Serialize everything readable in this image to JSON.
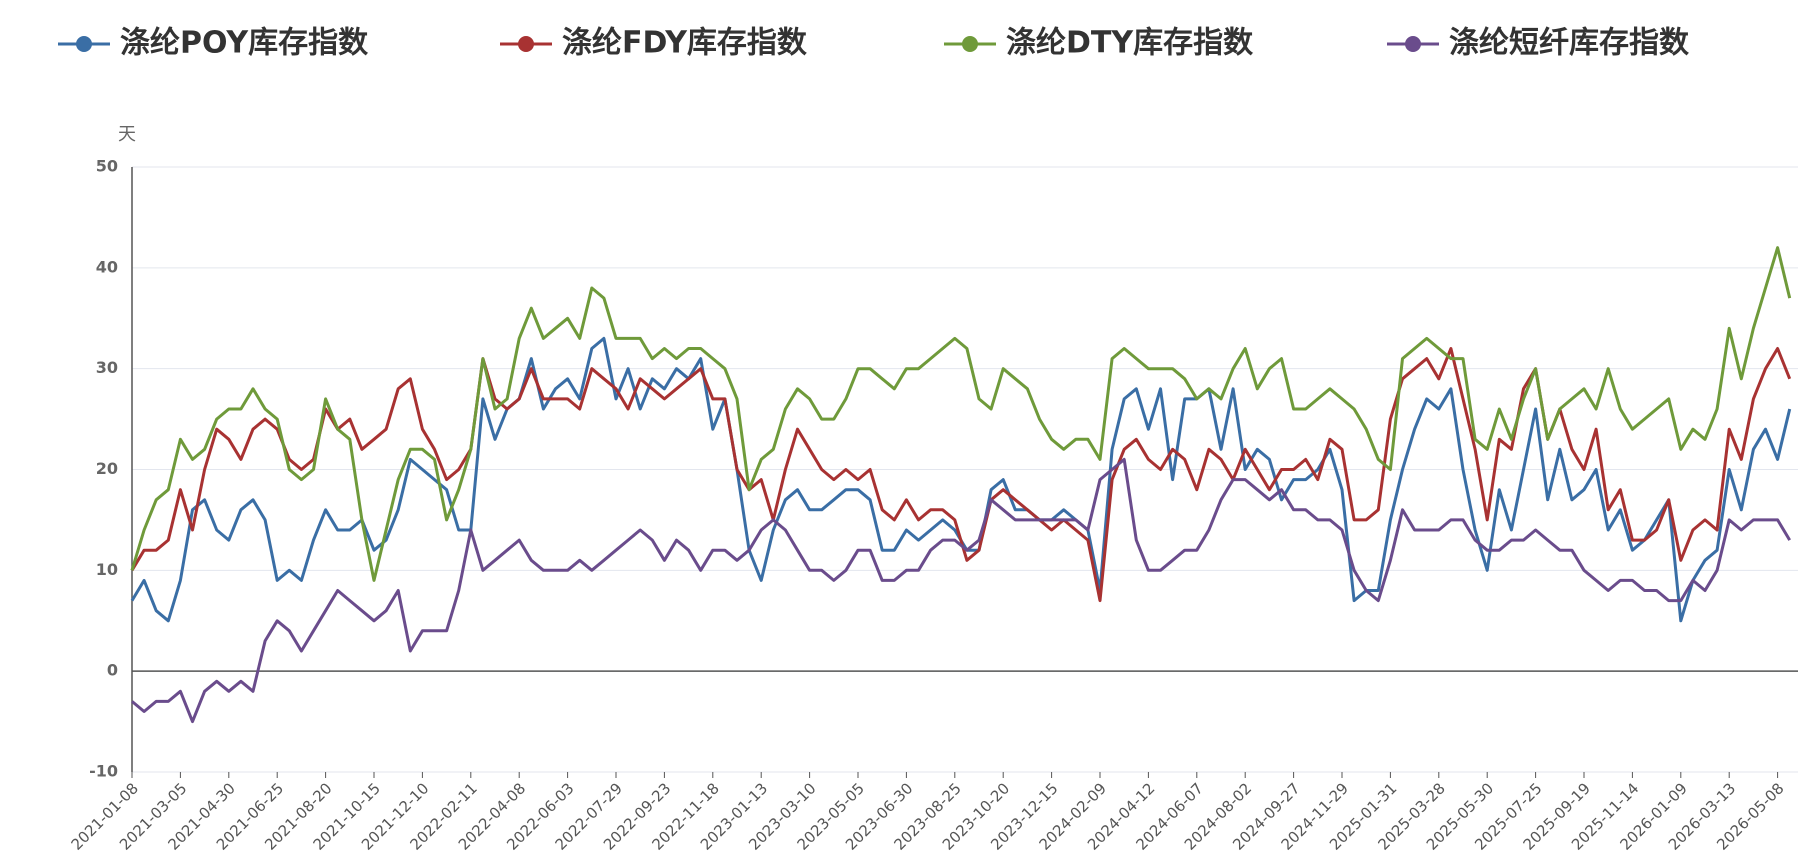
{
  "chart_data": {
    "type": "line",
    "y_axis_label": "天",
    "categories": [
      "2021-01-08",
      null,
      null,
      null,
      "2021-03-05",
      null,
      null,
      null,
      "2021-04-30",
      null,
      null,
      null,
      "2021-06-25",
      null,
      null,
      null,
      "2021-08-20",
      null,
      null,
      null,
      "2021-10-15",
      null,
      null,
      null,
      "2021-12-10",
      null,
      null,
      null,
      "2022-02-11",
      null,
      null,
      null,
      "2022-04-08",
      null,
      null,
      null,
      "2022-06-03",
      null,
      null,
      null,
      "2022-07-29",
      null,
      null,
      null,
      "2022-09-23",
      null,
      null,
      null,
      "2022-11-18",
      null,
      null,
      null,
      "2023-01-13",
      null,
      null,
      null,
      "2023-03-10",
      null,
      null,
      null,
      "2023-05-05",
      null,
      null,
      null,
      "2023-06-30",
      null,
      null,
      null,
      "2023-08-25",
      null,
      null,
      null,
      "2023-10-20",
      null,
      null,
      null,
      "2023-12-15",
      null,
      null,
      null,
      "2024-02-09",
      null,
      null,
      null,
      "2024-04-12",
      null,
      null,
      null,
      "2024-06-07",
      null,
      null,
      null,
      "2024-08-02",
      null,
      null,
      null,
      "2024-09-27",
      null,
      null,
      null,
      "2024-11-29",
      null,
      null,
      null,
      "2025-01-31",
      null,
      null,
      null,
      "2025-03-28",
      null,
      null,
      null,
      "2025-05-30",
      null,
      null,
      null,
      "2025-07-25",
      null,
      null,
      null,
      "2025-09-19",
      null,
      null,
      null,
      "2025-11-14",
      null,
      null,
      null,
      "2026-01-09",
      null,
      null,
      null,
      "2026-03-13",
      null,
      null,
      null,
      "2026-05-08",
      null
    ],
    "series": [
      {
        "name": "涤纶POY库存指数",
        "color": "#3a6ea5",
        "values": [
          7,
          9,
          6,
          5,
          9,
          16,
          17,
          14,
          13,
          16,
          17,
          15,
          9,
          10,
          9,
          13,
          16,
          14,
          14,
          15,
          12,
          13,
          16,
          21,
          20,
          19,
          18,
          14,
          14,
          27,
          23,
          26,
          27,
          31,
          26,
          28,
          29,
          27,
          32,
          33,
          27,
          30,
          26,
          29,
          28,
          30,
          29,
          31,
          24,
          27,
          20,
          12,
          9,
          14,
          17,
          18,
          16,
          16,
          17,
          18,
          18,
          17,
          12,
          12,
          14,
          13,
          14,
          15,
          14,
          12,
          12,
          18,
          19,
          16,
          16,
          15,
          15,
          16,
          15,
          14,
          8,
          22,
          27,
          28,
          24,
          28,
          19,
          27,
          27,
          28,
          22,
          28,
          20,
          22,
          21,
          17,
          19,
          19,
          20,
          22,
          18,
          7,
          8,
          8,
          15,
          20,
          24,
          27,
          26,
          28,
          20,
          14,
          10,
          18,
          14,
          20,
          26,
          17,
          22,
          17,
          18,
          20,
          14,
          16,
          12,
          13,
          15,
          17,
          5,
          9,
          11,
          12,
          20,
          16,
          22,
          24,
          21,
          26
        ]
      },
      {
        "name": "涤纶FDY库存指数",
        "color": "#a83232",
        "values": [
          10,
          12,
          12,
          13,
          18,
          14,
          20,
          24,
          23,
          21,
          24,
          25,
          24,
          21,
          20,
          21,
          26,
          24,
          25,
          22,
          23,
          24,
          28,
          29,
          24,
          22,
          19,
          20,
          22,
          31,
          27,
          26,
          27,
          30,
          27,
          27,
          27,
          26,
          30,
          29,
          28,
          26,
          29,
          28,
          27,
          28,
          29,
          30,
          27,
          27,
          20,
          18,
          19,
          15,
          20,
          24,
          22,
          20,
          19,
          20,
          19,
          20,
          16,
          15,
          17,
          15,
          16,
          16,
          15,
          11,
          12,
          17,
          18,
          17,
          16,
          15,
          14,
          15,
          14,
          13,
          7,
          19,
          22,
          23,
          21,
          20,
          22,
          21,
          18,
          22,
          21,
          19,
          22,
          20,
          18,
          20,
          20,
          21,
          19,
          23,
          22,
          15,
          15,
          16,
          25,
          29,
          30,
          31,
          29,
          32,
          27,
          22,
          15,
          23,
          22,
          28,
          30,
          23,
          26,
          22,
          20,
          24,
          16,
          18,
          13,
          13,
          14,
          17,
          11,
          14,
          15,
          14,
          24,
          21,
          27,
          30,
          32,
          29
        ]
      },
      {
        "name": "涤纶DTY库存指数",
        "color": "#6f9a3a",
        "values": [
          10,
          14,
          17,
          18,
          23,
          21,
          22,
          25,
          26,
          26,
          28,
          26,
          25,
          20,
          19,
          20,
          27,
          24,
          23,
          15,
          9,
          14,
          19,
          22,
          22,
          21,
          15,
          18,
          22,
          31,
          26,
          27,
          33,
          36,
          33,
          34,
          35,
          33,
          38,
          37,
          33,
          33,
          33,
          31,
          32,
          31,
          32,
          32,
          31,
          30,
          27,
          18,
          21,
          22,
          26,
          28,
          27,
          25,
          25,
          27,
          30,
          30,
          29,
          28,
          30,
          30,
          31,
          32,
          33,
          32,
          27,
          26,
          30,
          29,
          28,
          25,
          23,
          22,
          23,
          23,
          21,
          31,
          32,
          31,
          30,
          30,
          30,
          29,
          27,
          28,
          27,
          30,
          32,
          28,
          30,
          31,
          26,
          26,
          27,
          28,
          27,
          26,
          24,
          21,
          20,
          31,
          32,
          33,
          32,
          31,
          31,
          23,
          22,
          26,
          23,
          27,
          30,
          23,
          26,
          27,
          28,
          26,
          30,
          26,
          24,
          25,
          26,
          27,
          22,
          24,
          23,
          26,
          34,
          29,
          34,
          38,
          42,
          37
        ]
      },
      {
        "name": "涤纶短纤库存指数",
        "color": "#6a4c8c",
        "values": [
          -3,
          -4,
          -3,
          -3,
          -2,
          -5,
          -2,
          -1,
          -2,
          -1,
          -2,
          3,
          5,
          4,
          2,
          4,
          6,
          8,
          7,
          6,
          5,
          6,
          8,
          2,
          4,
          4,
          4,
          8,
          14,
          10,
          11,
          12,
          13,
          11,
          10,
          10,
          10,
          11,
          10,
          11,
          12,
          13,
          14,
          13,
          11,
          13,
          12,
          10,
          12,
          12,
          11,
          12,
          14,
          15,
          14,
          12,
          10,
          10,
          9,
          10,
          12,
          12,
          9,
          9,
          10,
          10,
          12,
          13,
          13,
          12,
          13,
          17,
          16,
          15,
          15,
          15,
          15,
          15,
          15,
          14,
          19,
          20,
          21,
          13,
          10,
          10,
          11,
          12,
          12,
          14,
          17,
          19,
          19,
          18,
          17,
          18,
          16,
          16,
          15,
          15,
          14,
          10,
          8,
          7,
          11,
          16,
          14,
          14,
          14,
          15,
          15,
          13,
          12,
          12,
          13,
          13,
          14,
          13,
          12,
          12,
          10,
          9,
          8,
          9,
          9,
          8,
          8,
          7,
          7,
          9,
          8,
          10,
          15,
          14,
          15,
          15,
          15,
          13
        ]
      }
    ],
    "ylim": [
      -10,
      50
    ],
    "yticks": [
      -10,
      0,
      10,
      20,
      30,
      40,
      50
    ],
    "grid": true,
    "legend": "top"
  }
}
